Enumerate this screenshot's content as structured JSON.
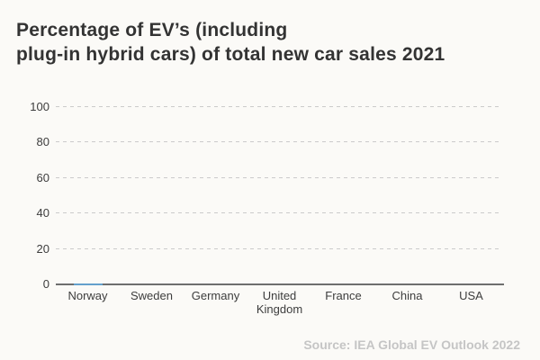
{
  "title": {
    "line1": "Percentage of EV’s (including",
    "line2": "plug-in hybrid cars) of total new car sales 2021"
  },
  "source": "Source: IEA Global EV Outlook 2022",
  "colors": {
    "background": "#fbfaf7",
    "title_text": "#333333",
    "axis_text": "#3d3d3d",
    "gridline": "#cbcbcb",
    "axis_line": "#6e6e6e",
    "bar": "#64a0cc",
    "source_text": "#c5c5c5"
  },
  "chart_data": {
    "type": "bar",
    "title": "Percentage of EV’s (including plug-in hybrid cars) of total new car sales 2021",
    "categories": [
      "Norway",
      "Sweden",
      "Germany",
      "United Kingdom",
      "France",
      "China",
      "USA"
    ],
    "values": [
      1,
      0,
      0,
      0,
      0,
      0,
      0
    ],
    "xlabel": "",
    "ylabel": "",
    "ylim": [
      0,
      100
    ],
    "y_ticks": [
      0,
      20,
      40,
      60,
      80,
      100
    ],
    "grid": "horizontal dashed",
    "legend": "none",
    "source": "Source: IEA Global EV Outlook 2022"
  }
}
